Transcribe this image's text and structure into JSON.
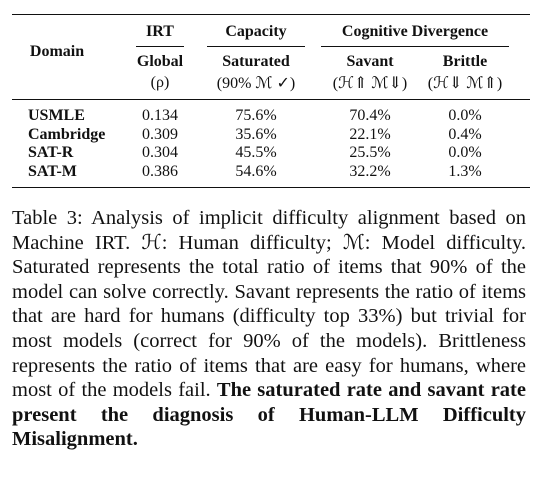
{
  "table": {
    "domain_header": "Domain",
    "group_headers": [
      "IRT",
      "Capacity",
      "Cognitive Divergence"
    ],
    "column_headers": [
      {
        "name": "Global",
        "sub": "(ρ)"
      },
      {
        "name": "Saturated",
        "sub": "(90% ℳ ✓)"
      },
      {
        "name": "Savant",
        "sub": "(ℋ⇑ ℳ⇓)"
      },
      {
        "name": "Brittle",
        "sub": "(ℋ⇓ ℳ⇑)"
      }
    ],
    "rows": [
      [
        "USMLE",
        "0.134",
        "75.6%",
        "70.4%",
        "0.0%"
      ],
      [
        "Cambridge",
        "0.309",
        "35.6%",
        "22.1%",
        "0.4%"
      ],
      [
        "SAT-R",
        "0.304",
        "45.5%",
        "25.5%",
        "0.0%"
      ],
      [
        "SAT-M",
        "0.386",
        "54.6%",
        "32.2%",
        "1.3%"
      ]
    ]
  },
  "caption": {
    "text": "Table 3: Analysis of implicit difficulty alignment based on Machine IRT. ℋ: Human difficulty; ℳ: Model difficulty. Saturated represents the total ratio of items that 90% of the model can solve correctly. Savant represents the ratio of items that are hard for humans (difficulty top 33%) but trivial for most models (correct for 90% of the models). Brittleness represents the ratio of items that are easy for humans, where most of the models fail.",
    "bold_text": "The saturated rate and savant rate present the diagnosis of Human-LLM Difficulty Misalignment."
  }
}
